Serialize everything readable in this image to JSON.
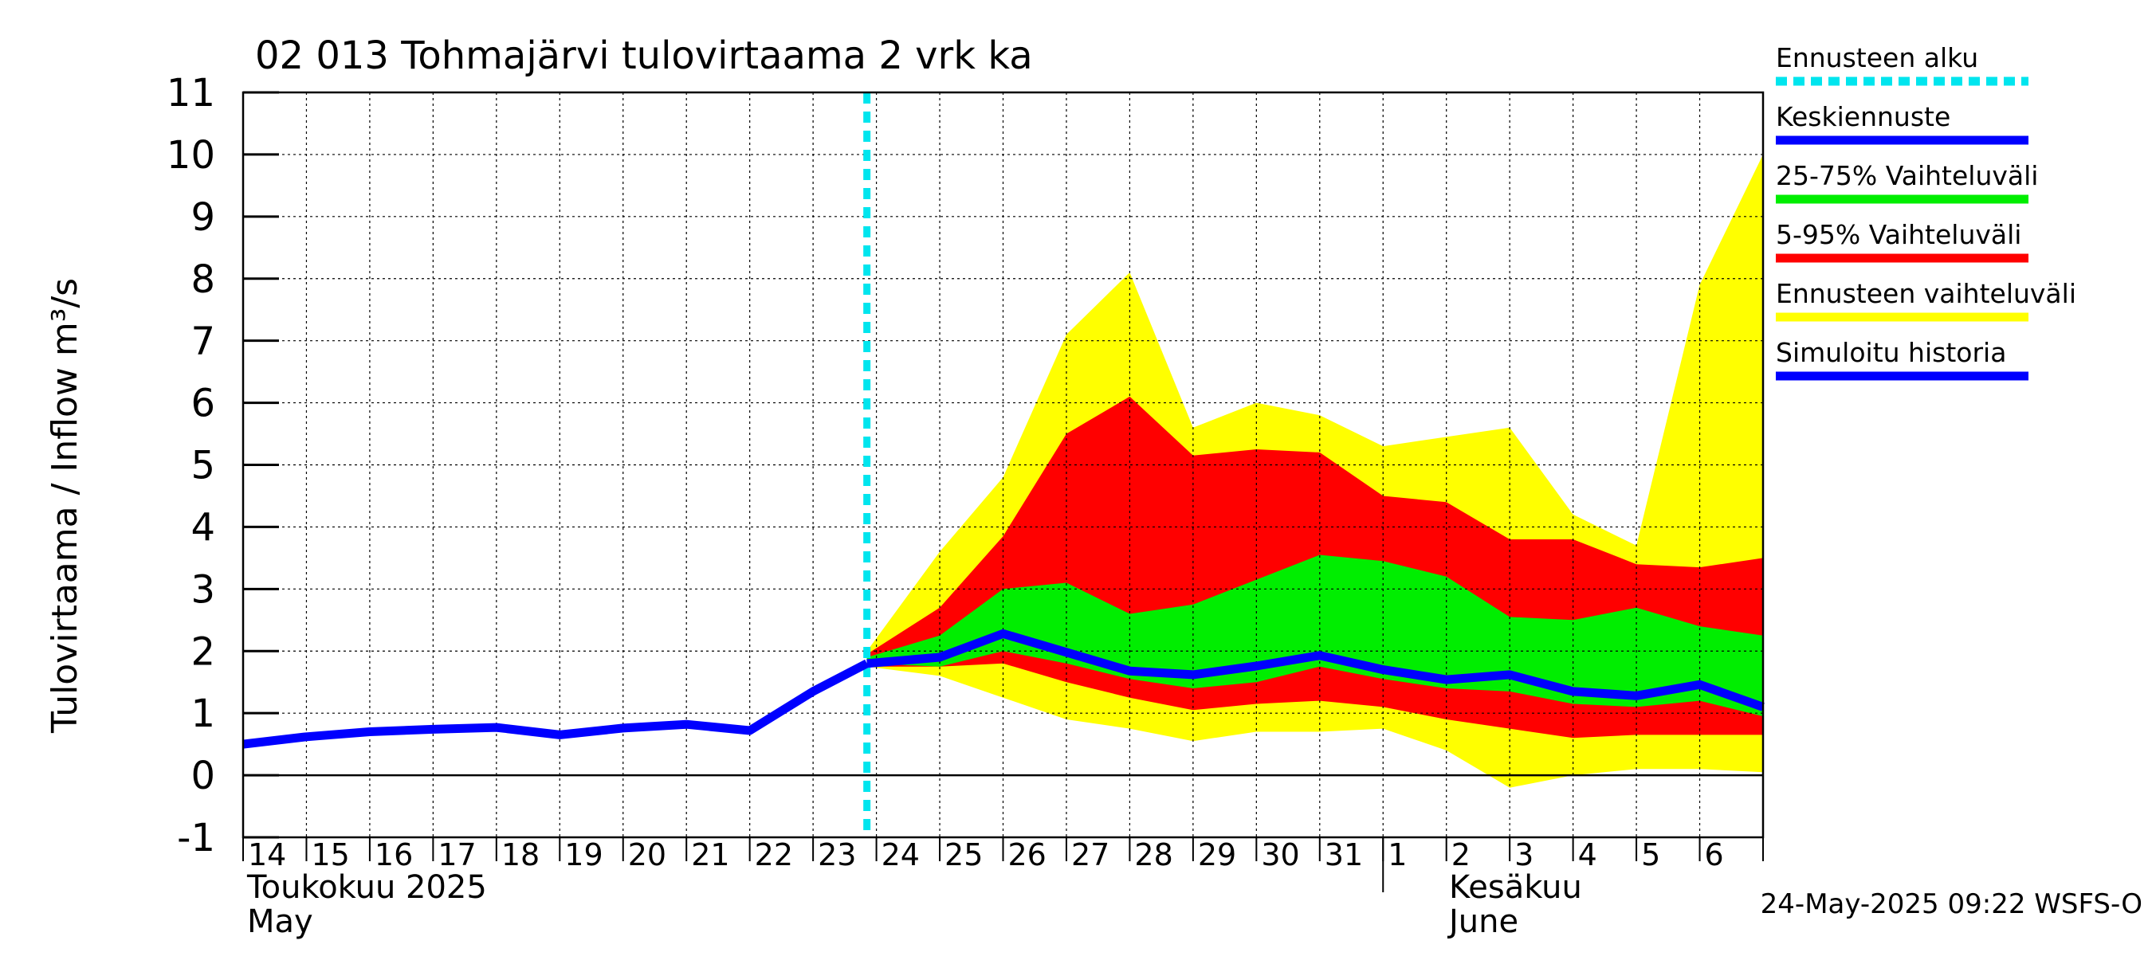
{
  "chart_data": {
    "type": "area",
    "title": "02 013 Tohmajärvi tulovirtaama 2 vrk ka",
    "ylabel": "Tulovirtaama / Inflow    m³/s",
    "ylim": [
      -1,
      11
    ],
    "yticks": [
      "-1",
      "0",
      "1",
      "2",
      "3",
      "4",
      "5",
      "6",
      "7",
      "8",
      "9",
      "10",
      "11"
    ],
    "x_days": [
      "14",
      "15",
      "16",
      "17",
      "18",
      "19",
      "20",
      "21",
      "22",
      "23",
      "24",
      "25",
      "26",
      "27",
      "28",
      "29",
      "30",
      "31",
      "1",
      "2",
      "3",
      "4",
      "5",
      "6"
    ],
    "month_labels": {
      "may_fi": "Toukokuu  2025",
      "may_en": "May",
      "june_fi": "Kesäkuu",
      "june_en": "June"
    },
    "forecast_start_day_index": 9.85,
    "history": {
      "name": "Simuloitu historia",
      "x": [
        0,
        1,
        2,
        3,
        4,
        5,
        6,
        7,
        8,
        9,
        9.85
      ],
      "y": [
        0.5,
        0.62,
        0.7,
        0.74,
        0.77,
        0.65,
        0.76,
        0.82,
        0.72,
        1.35,
        1.8
      ]
    },
    "forecast_x": [
      9.85,
      11,
      12,
      13,
      14,
      15,
      16,
      17,
      18,
      19,
      20,
      21,
      22,
      23,
      24
    ],
    "series": [
      {
        "name": "Ennusteen vaihteluväli",
        "upper": [
          2.0,
          3.6,
          4.8,
          7.1,
          8.1,
          5.6,
          6.0,
          5.8,
          5.3,
          5.45,
          5.6,
          4.2,
          3.7,
          7.9,
          10.0
        ],
        "lower": [
          1.75,
          1.6,
          1.25,
          0.9,
          0.75,
          0.55,
          0.7,
          0.7,
          0.75,
          0.4,
          -0.2,
          0.0,
          0.1,
          0.1,
          0.05
        ]
      },
      {
        "name": "5-95% Vaihteluväli",
        "upper": [
          1.95,
          2.7,
          3.85,
          5.5,
          6.1,
          5.15,
          5.25,
          5.2,
          4.5,
          4.4,
          3.8,
          3.8,
          3.4,
          3.35,
          3.5
        ],
        "lower": [
          1.75,
          1.75,
          1.8,
          1.5,
          1.25,
          1.05,
          1.15,
          1.2,
          1.1,
          0.9,
          0.75,
          0.6,
          0.65,
          0.65,
          0.65
        ]
      },
      {
        "name": "25-75% Vaihteluväli",
        "upper": [
          1.9,
          2.25,
          3.0,
          3.1,
          2.6,
          2.75,
          3.15,
          3.55,
          3.45,
          3.2,
          2.55,
          2.5,
          2.7,
          2.4,
          2.25
        ],
        "lower": [
          1.8,
          1.75,
          2.0,
          1.8,
          1.55,
          1.4,
          1.5,
          1.75,
          1.55,
          1.4,
          1.35,
          1.15,
          1.1,
          1.2,
          0.95
        ]
      }
    ],
    "median": {
      "name": "Keskiennuste",
      "y": [
        1.8,
        1.9,
        2.28,
        1.98,
        1.68,
        1.62,
        1.76,
        1.93,
        1.7,
        1.54,
        1.62,
        1.35,
        1.28,
        1.46,
        1.1
      ]
    },
    "legend": [
      {
        "label": "Ennusteen alku",
        "color": "#00e5ee",
        "style": "dashed"
      },
      {
        "label": "Keskiennuste",
        "color": "#0000ff",
        "style": "solid"
      },
      {
        "label": "25-75% Vaihteluväli",
        "color": "#00ee00",
        "style": "solid"
      },
      {
        "label": "5-95% Vaihteluväli",
        "color": "#ff0000",
        "style": "solid"
      },
      {
        "label": "Ennusteen vaihteluväli",
        "color": "#ffff00",
        "style": "solid"
      },
      {
        "label": "Simuloitu historia",
        "color": "#0000ff",
        "style": "solid"
      }
    ],
    "colors": {
      "yellow": "#ffff00",
      "red": "#ff0000",
      "green": "#00ee00",
      "blue": "#0000ff",
      "cyan": "#00e5ee"
    },
    "timestamp": "24-May-2025 09:22 WSFS-O"
  }
}
